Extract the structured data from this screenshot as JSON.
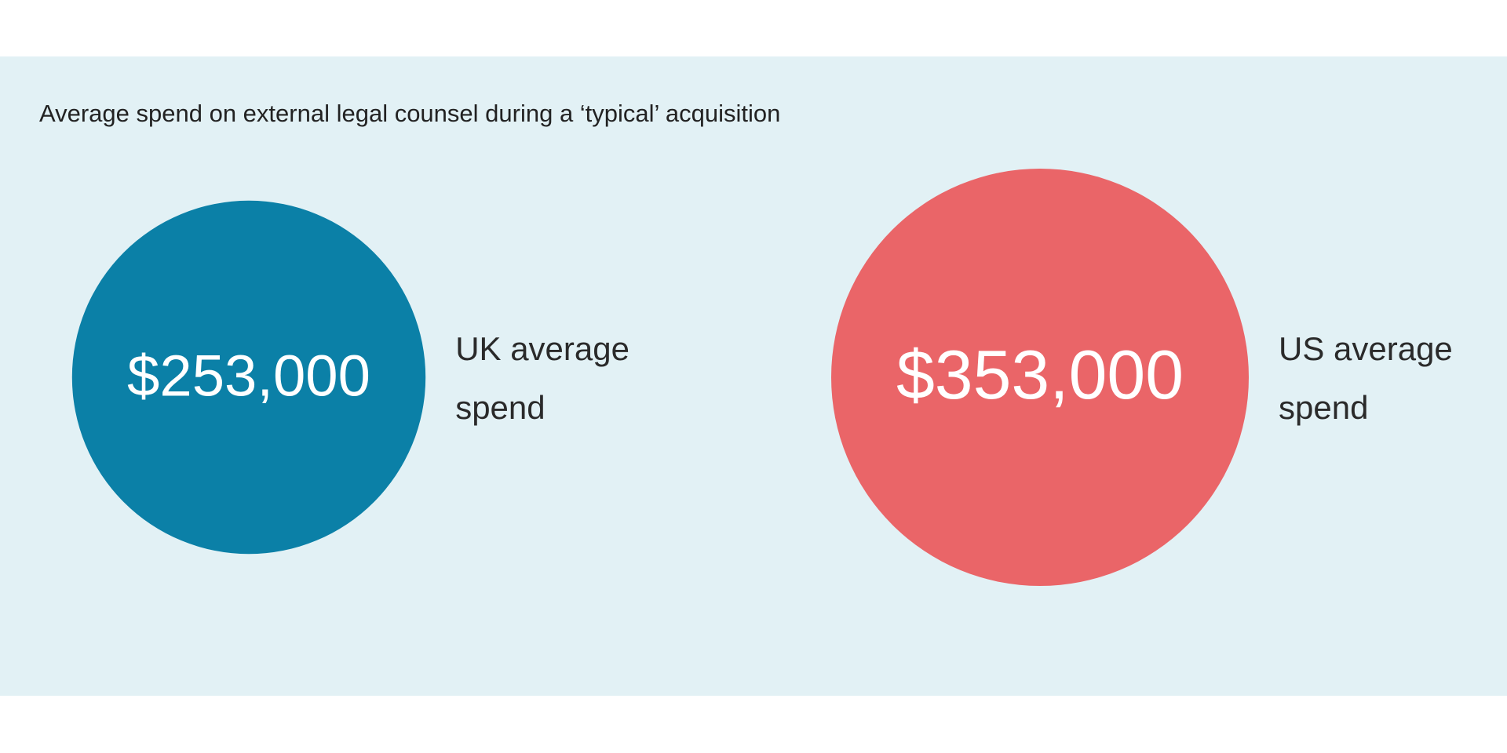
{
  "chart_data": {
    "type": "bubble",
    "title": "Average spend on external legal counsel during a ‘typical’ acquisition",
    "categories": [
      "UK average spend",
      "US average spend"
    ],
    "values": [
      253000,
      353000
    ],
    "value_labels": [
      "$253,000",
      "$353,000"
    ],
    "colors": [
      "#0b80a7",
      "#ea6568"
    ]
  }
}
